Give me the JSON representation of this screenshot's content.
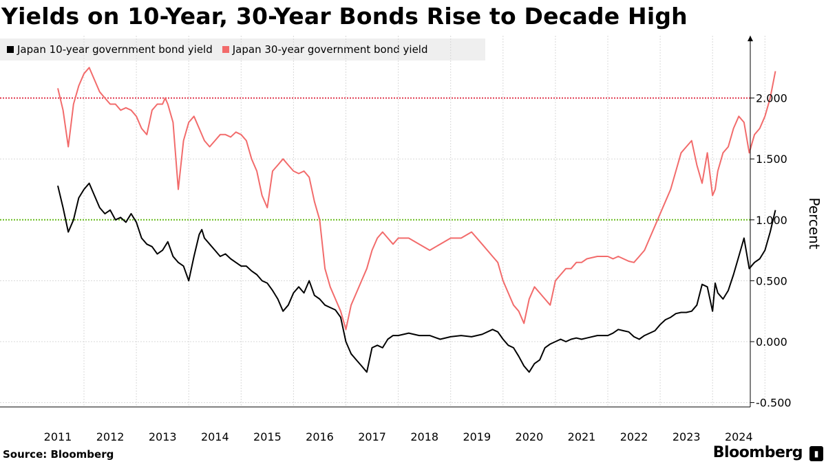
{
  "chart_data": {
    "type": "line",
    "title": "Yields on 10-Year, 30-Year Bonds Rise to Decade High",
    "ylabel": "Percent",
    "xlabel": "",
    "ylim": [
      -0.55,
      2.5
    ],
    "xlim": [
      2010.5,
      2024.45
    ],
    "yticks": [
      "-0.500",
      "0.000",
      "0.500",
      "1.000",
      "1.500",
      "2.000"
    ],
    "xticks": [
      "2011",
      "2012",
      "2013",
      "2014",
      "2015",
      "2016",
      "2017",
      "2018",
      "2019",
      "2020",
      "2021",
      "2022",
      "2023",
      "2024"
    ],
    "reference_lines": [
      {
        "value": 2.0,
        "color": "#e0364c"
      },
      {
        "value": 1.0,
        "color": "#66bb1a"
      }
    ],
    "series": [
      {
        "name": "Japan 10-year government bond yield",
        "color": "#000000",
        "x": [
          2010.5,
          2010.6,
          2010.7,
          2010.8,
          2010.9,
          2011.0,
          2011.1,
          2011.2,
          2011.3,
          2011.4,
          2011.5,
          2011.6,
          2011.7,
          2011.8,
          2011.9,
          2012.0,
          2012.1,
          2012.2,
          2012.3,
          2012.4,
          2012.5,
          2012.6,
          2012.7,
          2012.8,
          2012.9,
          2013.0,
          2013.1,
          2013.2,
          2013.25,
          2013.3,
          2013.4,
          2013.5,
          2013.6,
          2013.7,
          2013.8,
          2013.9,
          2014.0,
          2014.1,
          2014.2,
          2014.3,
          2014.4,
          2014.5,
          2014.6,
          2014.7,
          2014.8,
          2014.9,
          2015.0,
          2015.1,
          2015.2,
          2015.3,
          2015.4,
          2015.5,
          2015.6,
          2015.7,
          2015.8,
          2015.9,
          2016.0,
          2016.05,
          2016.1,
          2016.2,
          2016.3,
          2016.4,
          2016.5,
          2016.6,
          2016.7,
          2016.8,
          2016.9,
          2017.0,
          2017.2,
          2017.4,
          2017.6,
          2017.8,
          2018.0,
          2018.2,
          2018.4,
          2018.6,
          2018.8,
          2018.9,
          2019.0,
          2019.1,
          2019.2,
          2019.3,
          2019.4,
          2019.5,
          2019.6,
          2019.7,
          2019.8,
          2019.9,
          2020.0,
          2020.1,
          2020.2,
          2020.3,
          2020.4,
          2020.5,
          2020.6,
          2020.8,
          2021.0,
          2021.1,
          2021.2,
          2021.3,
          2021.4,
          2021.5,
          2021.6,
          2021.7,
          2021.8,
          2021.9,
          2022.0,
          2022.1,
          2022.2,
          2022.3,
          2022.4,
          2022.5,
          2022.6,
          2022.7,
          2022.8,
          2022.9,
          2023.0,
          2023.05,
          2023.1,
          2023.2,
          2023.3,
          2023.4,
          2023.5,
          2023.6,
          2023.7,
          2023.8,
          2023.9,
          2024.0,
          2024.1,
          2024.2
        ],
        "values": [
          1.28,
          1.1,
          0.9,
          1.0,
          1.18,
          1.25,
          1.3,
          1.2,
          1.1,
          1.05,
          1.08,
          1.0,
          1.02,
          0.98,
          1.05,
          0.98,
          0.85,
          0.8,
          0.78,
          0.72,
          0.75,
          0.82,
          0.7,
          0.65,
          0.62,
          0.5,
          0.7,
          0.88,
          0.92,
          0.85,
          0.8,
          0.75,
          0.7,
          0.72,
          0.68,
          0.65,
          0.62,
          0.62,
          0.58,
          0.55,
          0.5,
          0.48,
          0.42,
          0.35,
          0.25,
          0.3,
          0.4,
          0.45,
          0.4,
          0.5,
          0.38,
          0.35,
          0.3,
          0.28,
          0.26,
          0.2,
          0.0,
          -0.05,
          -0.1,
          -0.15,
          -0.2,
          -0.25,
          -0.05,
          -0.03,
          -0.05,
          0.02,
          0.05,
          0.05,
          0.07,
          0.05,
          0.05,
          0.02,
          0.04,
          0.05,
          0.04,
          0.06,
          0.1,
          0.08,
          0.02,
          -0.03,
          -0.05,
          -0.12,
          -0.2,
          -0.25,
          -0.18,
          -0.15,
          -0.05,
          -0.02,
          0.0,
          0.02,
          0.0,
          0.02,
          0.03,
          0.02,
          0.03,
          0.05,
          0.05,
          0.07,
          0.1,
          0.09,
          0.08,
          0.04,
          0.02,
          0.05,
          0.07,
          0.09,
          0.14,
          0.18,
          0.2,
          0.23,
          0.24,
          0.24,
          0.25,
          0.3,
          0.47,
          0.45,
          0.25,
          0.48,
          0.4,
          0.35,
          0.42,
          0.55,
          0.7,
          0.85,
          0.6,
          0.65,
          0.68,
          0.75,
          0.9,
          1.08
        ]
      },
      {
        "name": "Japan 30-year government bond yield",
        "color": "#f26b6b",
        "x": [
          2010.5,
          2010.6,
          2010.7,
          2010.8,
          2010.9,
          2011.0,
          2011.1,
          2011.2,
          2011.3,
          2011.4,
          2011.5,
          2011.6,
          2011.7,
          2011.8,
          2011.9,
          2012.0,
          2012.1,
          2012.2,
          2012.3,
          2012.4,
          2012.5,
          2012.55,
          2012.6,
          2012.7,
          2012.8,
          2012.9,
          2013.0,
          2013.1,
          2013.2,
          2013.3,
          2013.4,
          2013.5,
          2013.6,
          2013.7,
          2013.8,
          2013.9,
          2014.0,
          2014.1,
          2014.2,
          2014.3,
          2014.4,
          2014.5,
          2014.6,
          2014.7,
          2014.8,
          2014.9,
          2015.0,
          2015.1,
          2015.2,
          2015.3,
          2015.4,
          2015.5,
          2015.6,
          2015.7,
          2015.8,
          2015.9,
          2016.0,
          2016.05,
          2016.1,
          2016.2,
          2016.3,
          2016.4,
          2016.5,
          2016.6,
          2016.7,
          2016.8,
          2016.9,
          2017.0,
          2017.2,
          2017.4,
          2017.6,
          2017.8,
          2018.0,
          2018.2,
          2018.4,
          2018.6,
          2018.8,
          2018.9,
          2019.0,
          2019.1,
          2019.2,
          2019.3,
          2019.4,
          2019.5,
          2019.6,
          2019.7,
          2019.8,
          2019.9,
          2020.0,
          2020.1,
          2020.2,
          2020.3,
          2020.4,
          2020.5,
          2020.6,
          2020.8,
          2021.0,
          2021.1,
          2021.2,
          2021.3,
          2021.4,
          2021.5,
          2021.6,
          2021.7,
          2021.8,
          2021.9,
          2022.0,
          2022.1,
          2022.2,
          2022.3,
          2022.4,
          2022.5,
          2022.6,
          2022.7,
          2022.8,
          2022.9,
          2023.0,
          2023.05,
          2023.1,
          2023.2,
          2023.3,
          2023.4,
          2023.5,
          2023.6,
          2023.7,
          2023.8,
          2023.9,
          2024.0,
          2024.1,
          2024.2
        ],
        "values": [
          2.08,
          1.9,
          1.6,
          1.95,
          2.1,
          2.2,
          2.25,
          2.15,
          2.05,
          2.0,
          1.95,
          1.95,
          1.9,
          1.92,
          1.9,
          1.85,
          1.75,
          1.7,
          1.9,
          1.95,
          1.95,
          2.0,
          1.95,
          1.8,
          1.25,
          1.65,
          1.8,
          1.85,
          1.75,
          1.65,
          1.6,
          1.65,
          1.7,
          1.7,
          1.68,
          1.72,
          1.7,
          1.65,
          1.5,
          1.4,
          1.2,
          1.1,
          1.4,
          1.45,
          1.5,
          1.45,
          1.4,
          1.38,
          1.4,
          1.35,
          1.15,
          1.0,
          0.6,
          0.45,
          0.35,
          0.25,
          0.1,
          0.2,
          0.3,
          0.4,
          0.5,
          0.6,
          0.75,
          0.85,
          0.9,
          0.85,
          0.8,
          0.85,
          0.85,
          0.8,
          0.75,
          0.8,
          0.85,
          0.85,
          0.9,
          0.8,
          0.7,
          0.65,
          0.5,
          0.4,
          0.3,
          0.25,
          0.15,
          0.35,
          0.45,
          0.4,
          0.35,
          0.3,
          0.5,
          0.55,
          0.6,
          0.6,
          0.65,
          0.65,
          0.68,
          0.7,
          0.7,
          0.68,
          0.7,
          0.68,
          0.66,
          0.65,
          0.7,
          0.75,
          0.85,
          0.95,
          1.05,
          1.15,
          1.25,
          1.4,
          1.55,
          1.6,
          1.65,
          1.45,
          1.3,
          1.55,
          1.2,
          1.25,
          1.4,
          1.55,
          1.6,
          1.75,
          1.85,
          1.8,
          1.55,
          1.7,
          1.75,
          1.85,
          2.0,
          2.22
        ]
      }
    ]
  },
  "source": "Source: Bloomberg",
  "brand": "Bloomberg"
}
